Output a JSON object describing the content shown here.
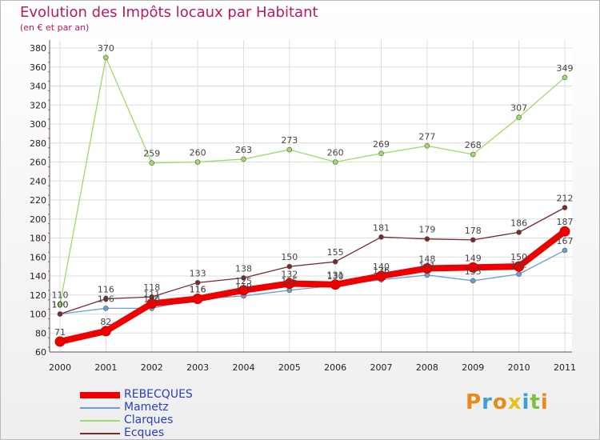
{
  "chart_data": {
    "type": "line",
    "title": "Evolution des Impôts locaux par Habitant",
    "subtitle": "(en € et par an)",
    "xlabel": "",
    "ylabel": "",
    "x": [
      "2000",
      "2001",
      "2002",
      "2003",
      "2004",
      "2005",
      "2006",
      "2007",
      "2008",
      "2009",
      "2010",
      "2011"
    ],
    "ylim": [
      60,
      380
    ],
    "yticks": [
      60,
      80,
      100,
      120,
      140,
      160,
      180,
      200,
      220,
      240,
      260,
      280,
      300,
      320,
      340,
      360,
      380
    ],
    "grid": true,
    "legend_position": "bottom-left",
    "series": [
      {
        "name": "REBECQUES",
        "color": "#ee0000",
        "values": [
          71,
          82,
          111,
          116,
          125,
          132,
          131,
          140,
          148,
          149,
          150,
          187
        ]
      },
      {
        "name": "Mametz",
        "color": "#6a9fd4",
        "values": [
          100,
          106,
          106,
          116,
          119,
          125,
          130,
          136,
          141,
          135,
          142,
          167
        ]
      },
      {
        "name": "Clarques",
        "color": "#9edb6a",
        "values": [
          110,
          370,
          259,
          260,
          263,
          273,
          260,
          269,
          277,
          268,
          307,
          349
        ]
      },
      {
        "name": "Ecques",
        "color": "#7a2a2a",
        "values": [
          100,
          116,
          118,
          133,
          138,
          150,
          155,
          181,
          179,
          178,
          186,
          212
        ]
      }
    ]
  },
  "logo": {
    "letters": [
      "P",
      "r",
      "o",
      "x",
      "i",
      "t",
      "i"
    ],
    "colors": [
      "#e88a1a",
      "#3aa0d8",
      "#e88a1a",
      "#e8c21a",
      "#3aa0d8",
      "#7cc242",
      "#e88a1a"
    ]
  }
}
